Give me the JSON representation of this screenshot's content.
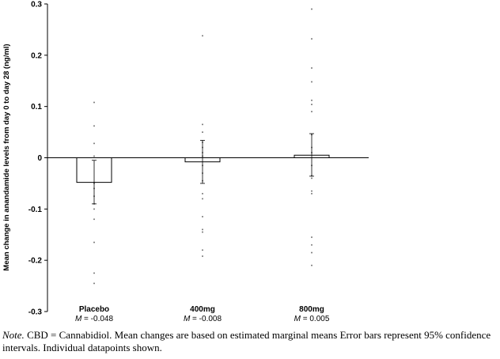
{
  "chart_data": {
    "type": "bar",
    "ylabel": "Mean change in anandamide levels from day 0 to day 28 (ng/ml)",
    "ylim": [
      -0.3,
      0.3
    ],
    "yticks": [
      0.3,
      0.2,
      0.1,
      0,
      -0.1,
      -0.2,
      -0.3
    ],
    "ytick_labels": [
      "0.3",
      "0.2",
      "0.1",
      "0",
      "-0.1",
      "-0.2",
      "-0.3"
    ],
    "grid": false,
    "categories": [
      "Placebo",
      "400mg",
      "800mg"
    ],
    "values": [
      -0.048,
      -0.008,
      0.005
    ],
    "mean_labels": [
      "-0.048",
      "-0.008",
      "0.005"
    ],
    "mean_prefix": "M",
    "mean_separator": " = ",
    "ci": [
      [
        -0.09,
        -0.005
      ],
      [
        -0.05,
        0.034
      ],
      [
        -0.036,
        0.047
      ]
    ],
    "points": [
      [
        0.108,
        0.062,
        0.028,
        0.003,
        -0.006,
        -0.01,
        -0.03,
        -0.05,
        -0.06,
        -0.075,
        -0.09,
        -0.1,
        -0.12,
        -0.165,
        -0.225,
        -0.245
      ],
      [
        0.238,
        0.065,
        0.05,
        0.03,
        0.02,
        0.01,
        0.003,
        -0.015,
        -0.03,
        -0.045,
        -0.07,
        -0.08,
        -0.115,
        -0.14,
        -0.145,
        -0.18,
        -0.192
      ],
      [
        0.29,
        0.232,
        0.175,
        0.148,
        0.112,
        0.104,
        0.09,
        0.045,
        0.02,
        0.01,
        -0.015,
        -0.035,
        -0.04,
        -0.065,
        -0.07,
        -0.155,
        -0.17,
        -0.185,
        -0.21
      ]
    ],
    "colors": {
      "bar_fill": "#ffffff",
      "bar_stroke": "#000000",
      "points": "#777777",
      "error_bars": "#000000"
    }
  },
  "note": {
    "label": "Note.",
    "text": " CBD = Cannabidiol. Mean changes are based on estimated marginal means Error bars represent 95% confidence intervals. Individual datapoints shown."
  }
}
